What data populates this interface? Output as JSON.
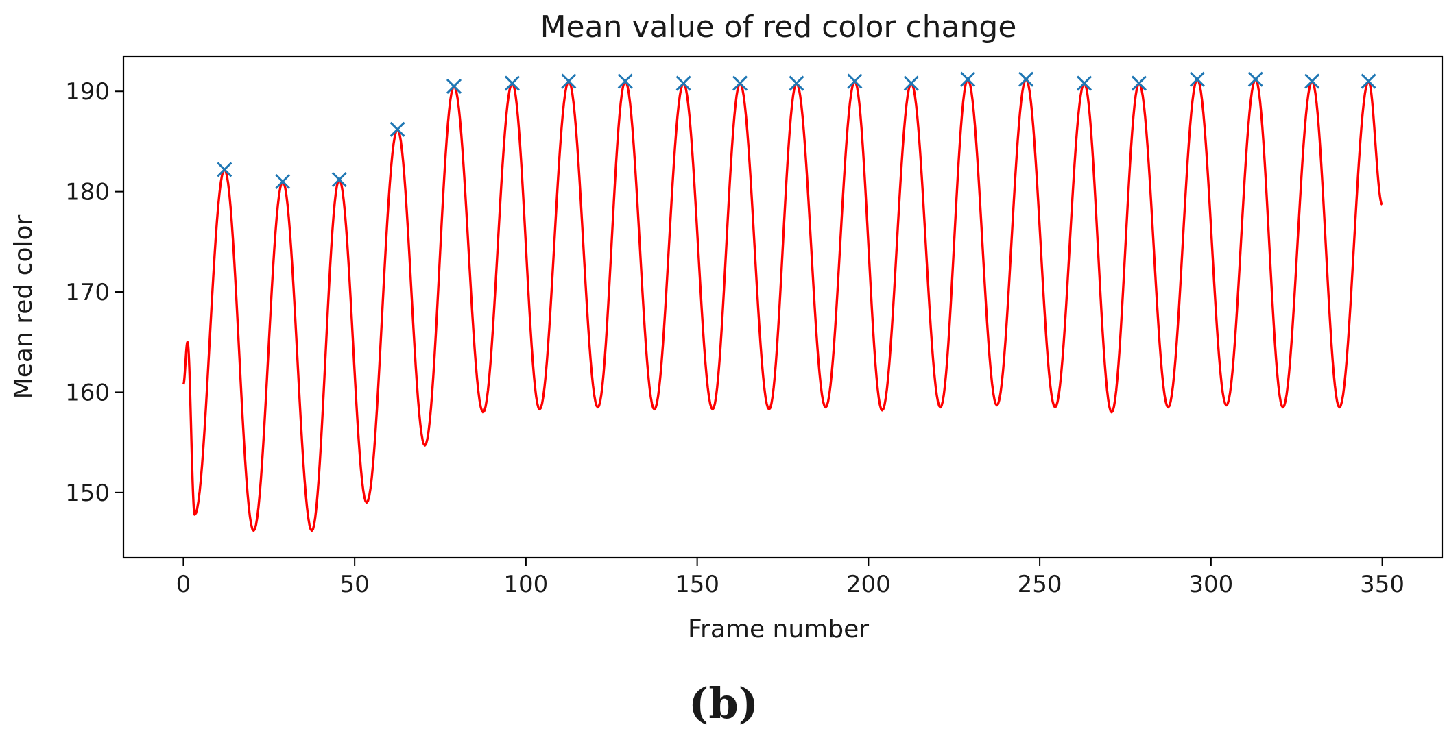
{
  "chart_data": {
    "type": "line",
    "title": "Mean value of red color change",
    "xlabel": "Frame number",
    "ylabel": "Mean red color",
    "xlim": [
      -17.5,
      367.5
    ],
    "ylim": [
      143.5,
      193.5
    ],
    "xticks": [
      0,
      50,
      100,
      150,
      200,
      250,
      300,
      350
    ],
    "yticks": [
      150,
      160,
      170,
      180,
      190
    ],
    "grid": false,
    "legend": "none",
    "series": [
      {
        "name": "mean red",
        "color": "#ff0000",
        "kind": "line",
        "x_start": 0,
        "x_end": 350,
        "segments": [
          {
            "peak_frame": 1.2,
            "peak": 165.0,
            "trough_frame": 3.3,
            "trough": 147.8
          },
          {
            "peak_frame": 12,
            "peak": 182.2,
            "trough_frame": 20.5,
            "trough": 146.2
          },
          {
            "peak_frame": 29,
            "peak": 181.0,
            "trough_frame": 37.5,
            "trough": 146.2
          },
          {
            "peak_frame": 45.5,
            "peak": 181.2,
            "trough_frame": 53.5,
            "trough": 149.0
          },
          {
            "peak_frame": 62.5,
            "peak": 186.2,
            "trough_frame": 70.5,
            "trough": 154.7
          },
          {
            "peak_frame": 79,
            "peak": 190.5,
            "trough_frame": 87.5,
            "trough": 158.0
          },
          {
            "peak_frame": 96,
            "peak": 190.8,
            "trough_frame": 104,
            "trough": 158.3
          },
          {
            "peak_frame": 112.5,
            "peak": 191.0,
            "trough_frame": 121,
            "trough": 158.5
          },
          {
            "peak_frame": 129,
            "peak": 191.0,
            "trough_frame": 137.5,
            "trough": 158.3
          },
          {
            "peak_frame": 146,
            "peak": 190.8,
            "trough_frame": 154.5,
            "trough": 158.3
          },
          {
            "peak_frame": 162.5,
            "peak": 190.8,
            "trough_frame": 171,
            "trough": 158.3
          },
          {
            "peak_frame": 179,
            "peak": 190.8,
            "trough_frame": 187.5,
            "trough": 158.5
          },
          {
            "peak_frame": 196,
            "peak": 191.0,
            "trough_frame": 204,
            "trough": 158.2
          },
          {
            "peak_frame": 212.5,
            "peak": 190.8,
            "trough_frame": 221,
            "trough": 158.5
          },
          {
            "peak_frame": 229,
            "peak": 191.2,
            "trough_frame": 237.5,
            "trough": 158.7
          },
          {
            "peak_frame": 246,
            "peak": 191.2,
            "trough_frame": 254.5,
            "trough": 158.5
          },
          {
            "peak_frame": 263,
            "peak": 190.8,
            "trough_frame": 271,
            "trough": 158.0
          },
          {
            "peak_frame": 279,
            "peak": 190.8,
            "trough_frame": 287.5,
            "trough": 158.5
          },
          {
            "peak_frame": 296,
            "peak": 191.2,
            "trough_frame": 304.5,
            "trough": 158.7
          },
          {
            "peak_frame": 313,
            "peak": 191.2,
            "trough_frame": 321,
            "trough": 158.5
          },
          {
            "peak_frame": 329.5,
            "peak": 191.0,
            "trough_frame": 337.5,
            "trough": 158.5
          },
          {
            "peak_frame": 346,
            "peak": 191.0
          }
        ],
        "end_value": 178.7,
        "start_value": 160.8
      },
      {
        "name": "detected peaks",
        "color": "#1f77b4",
        "kind": "marker-x",
        "x": [
          12,
          29,
          45.5,
          62.5,
          79,
          96,
          112.5,
          129,
          146,
          162.5,
          179,
          196,
          212.5,
          229,
          246,
          263,
          279,
          296,
          313,
          329.5,
          346
        ],
        "y": [
          182.2,
          181.0,
          181.2,
          186.2,
          190.5,
          190.8,
          191.0,
          191.0,
          190.8,
          190.8,
          190.8,
          191.0,
          190.8,
          191.2,
          191.2,
          190.8,
          190.8,
          191.2,
          191.2,
          191.0,
          191.0
        ]
      }
    ]
  },
  "caption": "(b)"
}
